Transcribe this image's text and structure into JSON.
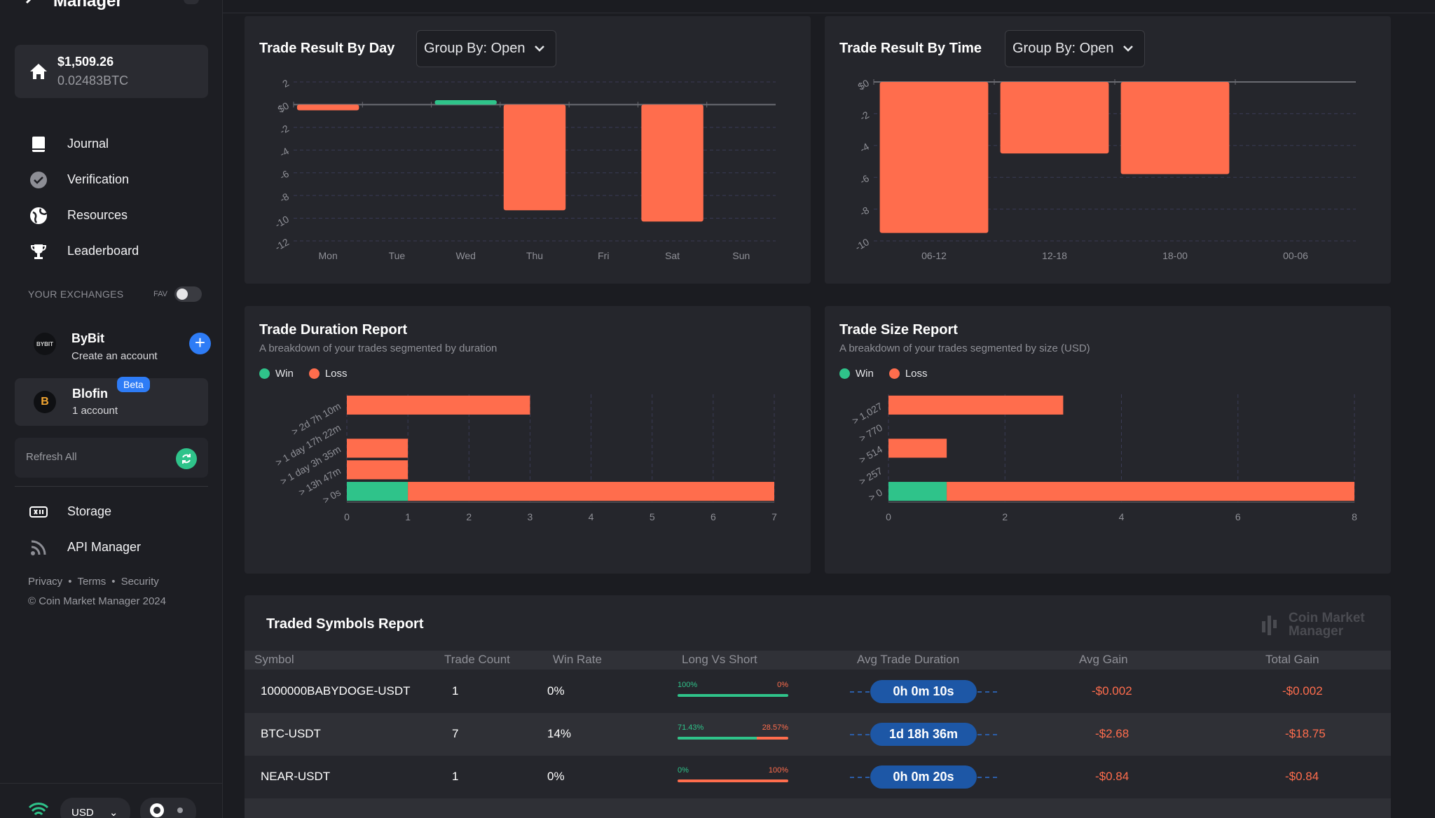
{
  "app": {
    "brand": "Manager"
  },
  "balance": {
    "usd": "$1,509.26",
    "btc": "0.02483BTC"
  },
  "nav": {
    "items": [
      {
        "label": "Journal",
        "icon": "book-icon"
      },
      {
        "label": "Verification",
        "icon": "check-circle-icon"
      },
      {
        "label": "Resources",
        "icon": "globe-icon"
      },
      {
        "label": "Leaderboard",
        "icon": "trophy-icon"
      }
    ],
    "bottom": [
      {
        "label": "Storage",
        "icon": "storage-icon"
      },
      {
        "label": "API Manager",
        "icon": "api-feed-icon"
      }
    ]
  },
  "exchanges": {
    "heading": "YOUR EXCHANGES",
    "fav_label": "FAV",
    "bybit": {
      "logo": "BYBIT",
      "name": "ByBit",
      "sub": "Create an account"
    },
    "blofin": {
      "logo": "B",
      "name": "Blofin",
      "sub": "1 account",
      "badge": "Beta"
    },
    "refresh": "Refresh All"
  },
  "footer": {
    "privacy": "Privacy",
    "terms": "Terms",
    "security": "Security",
    "copyright": "© Coin Market Manager 2024"
  },
  "bottom_bar": {
    "currency": "USD"
  },
  "colors": {
    "win": "#2fc38a",
    "loss": "#ff6d4d",
    "accent": "#2e7cf6"
  },
  "cards": {
    "by_day": {
      "title": "Trade Result By Day",
      "select": "Group By: Open"
    },
    "by_time": {
      "title": "Trade Result By Time",
      "select": "Group By: Open"
    },
    "duration": {
      "title": "Trade Duration Report",
      "sub": "A breakdown of your trades segmented by duration",
      "win": "Win",
      "loss": "Loss"
    },
    "size": {
      "title": "Trade Size Report",
      "sub": "A breakdown of your trades segmented by size (USD)",
      "win": "Win",
      "loss": "Loss"
    }
  },
  "chart_data": [
    {
      "type": "bar",
      "title": "Trade Result By Day",
      "categories": [
        "Mon",
        "Tue",
        "Wed",
        "Thu",
        "Fri",
        "Sat",
        "Sun"
      ],
      "values": [
        -0.5,
        0,
        0.4,
        -9.3,
        0,
        -10.3,
        0
      ],
      "yticks": [
        "2",
        "$0",
        "-2",
        "-4",
        "-6",
        "-8",
        "-10",
        "-12"
      ],
      "ylim": [
        -12,
        2
      ]
    },
    {
      "type": "bar",
      "title": "Trade Result By Time",
      "categories": [
        "06-12",
        "12-18",
        "18-00",
        "00-06"
      ],
      "values": [
        -9.5,
        -4.5,
        -5.8,
        0
      ],
      "yticks": [
        "$0",
        "-2",
        "-4",
        "-6",
        "-8",
        "-10"
      ],
      "ylim": [
        -10,
        0
      ]
    },
    {
      "type": "bar",
      "orientation": "horizontal",
      "title": "Trade Duration Report",
      "categories": [
        "> 2d 7h 10m",
        "> 1 day 17h 22m",
        "> 1 day 3h 35m",
        "> 13h 47m",
        "> 0s"
      ],
      "series": [
        {
          "name": "Win",
          "values": [
            0,
            0,
            0,
            0,
            1
          ]
        },
        {
          "name": "Loss",
          "values": [
            3,
            0,
            1,
            1,
            6
          ]
        }
      ],
      "xticks": [
        "0",
        "1",
        "2",
        "3",
        "4",
        "5",
        "6",
        "7"
      ],
      "xlim": [
        0,
        7
      ]
    },
    {
      "type": "bar",
      "orientation": "horizontal",
      "title": "Trade Size Report",
      "categories": [
        "> 1,027",
        "> 770",
        "> 514",
        "> 257",
        "> 0"
      ],
      "series": [
        {
          "name": "Win",
          "values": [
            0,
            0,
            0,
            0,
            1
          ]
        },
        {
          "name": "Loss",
          "values": [
            3,
            0,
            1,
            0,
            7
          ]
        }
      ],
      "xticks": [
        "0",
        "2",
        "4",
        "6",
        "8"
      ],
      "xlim": [
        0,
        8
      ]
    }
  ],
  "table": {
    "title": "Traded Symbols Report",
    "watermark": "Coin Market Manager",
    "headers": [
      "Symbol",
      "Trade Count",
      "Win Rate",
      "Long Vs Short",
      "Avg Trade Duration",
      "Avg Gain",
      "Total Gain"
    ],
    "rows": [
      {
        "symbol": "1000000BABYDOGE-USDT",
        "count": "1",
        "win_rate": "0%",
        "long": "100%",
        "short": "0%",
        "long_frac": 1.0,
        "duration": "0h 0m 10s",
        "avg_gain": "-$0.002",
        "total_gain": "-$0.002"
      },
      {
        "symbol": "BTC-USDT",
        "count": "7",
        "win_rate": "14%",
        "long": "71.43%",
        "short": "28.57%",
        "long_frac": 0.7143,
        "duration": "1d 18h 36m",
        "avg_gain": "-$2.68",
        "total_gain": "-$18.75"
      },
      {
        "symbol": "NEAR-USDT",
        "count": "1",
        "win_rate": "0%",
        "long": "0%",
        "short": "100%",
        "long_frac": 0.0,
        "duration": "0h 0m 20s",
        "avg_gain": "-$0.84",
        "total_gain": "-$0.84"
      }
    ]
  }
}
